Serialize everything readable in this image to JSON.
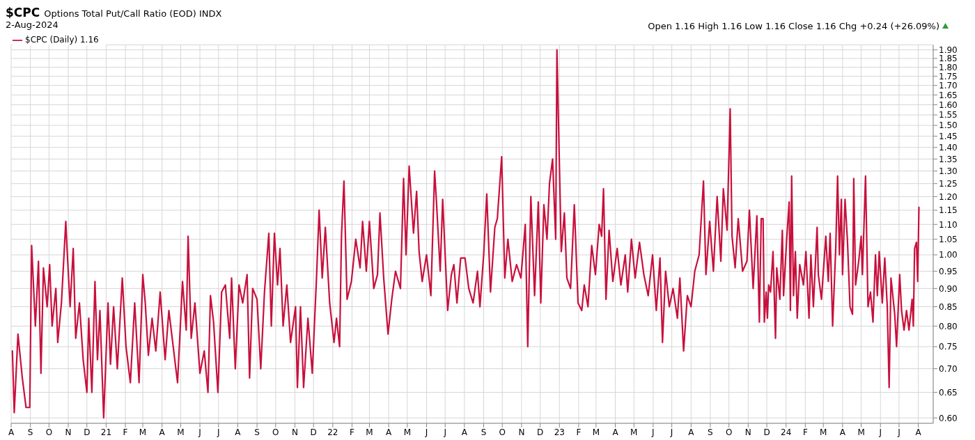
{
  "chart_data": {
    "type": "line",
    "title": "$CPC",
    "subtitle": "Options Total Put/Call Ratio (EOD) INDX",
    "annotations": [
      "2-Aug-2024",
      "Open 1.16 High 1.16 Low 1.16 Close 1.16 Chg +0.24 (+26.09%)"
    ],
    "x": [
      "2020-08-03",
      "2020-08-06",
      "2020-08-12",
      "2020-08-19",
      "2020-08-25",
      "2020-08-31",
      "2020-09-03",
      "2020-09-09",
      "2020-09-14",
      "2020-09-18",
      "2020-09-22",
      "2020-09-28",
      "2020-10-02",
      "2020-10-06",
      "2020-10-12",
      "2020-10-15",
      "2020-10-21",
      "2020-10-28",
      "2020-10-30",
      "2020-11-04",
      "2020-11-09",
      "2020-11-13",
      "2020-11-19",
      "2020-11-25",
      "2020-12-01",
      "2020-12-04",
      "2020-12-09",
      "2020-12-14",
      "2020-12-18",
      "2020-12-22",
      "2020-12-28",
      "2021-01-04",
      "2021-01-08",
      "2021-01-13",
      "2021-01-19",
      "2021-01-27",
      "2021-02-02",
      "2021-02-09",
      "2021-02-16",
      "2021-02-23",
      "2021-03-01",
      "2021-03-05",
      "2021-03-10",
      "2021-03-16",
      "2021-03-22",
      "2021-03-29",
      "2021-04-06",
      "2021-04-12",
      "2021-04-19",
      "2021-04-26",
      "2021-05-04",
      "2021-05-10",
      "2021-05-13",
      "2021-05-18",
      "2021-05-24",
      "2021-06-01",
      "2021-06-08",
      "2021-06-14",
      "2021-06-18",
      "2021-06-23",
      "2021-06-30",
      "2021-07-06",
      "2021-07-12",
      "2021-07-19",
      "2021-07-22",
      "2021-07-28",
      "2021-08-03",
      "2021-08-09",
      "2021-08-16",
      "2021-08-20",
      "2021-08-25",
      "2021-09-01",
      "2021-09-07",
      "2021-09-13",
      "2021-09-20",
      "2021-09-24",
      "2021-09-29",
      "2021-10-04",
      "2021-10-08",
      "2021-10-13",
      "2021-10-19",
      "2021-10-25",
      "2021-11-02",
      "2021-11-05",
      "2021-11-10",
      "2021-11-15",
      "2021-11-22",
      "2021-11-29",
      "2021-12-06",
      "2021-12-10",
      "2021-12-15",
      "2021-12-20",
      "2021-12-27",
      "2022-01-03",
      "2022-01-07",
      "2022-01-12",
      "2022-01-15",
      "2022-01-19",
      "2022-01-24",
      "2022-01-31",
      "2022-02-07",
      "2022-02-14",
      "2022-02-18",
      "2022-02-24",
      "2022-03-01",
      "2022-03-08",
      "2022-03-14",
      "2022-03-18",
      "2022-03-24",
      "2022-03-31",
      "2022-04-06",
      "2022-04-12",
      "2022-04-20",
      "2022-04-25",
      "2022-04-29",
      "2022-05-04",
      "2022-05-11",
      "2022-05-16",
      "2022-05-20",
      "2022-05-25",
      "2022-06-01",
      "2022-06-08",
      "2022-06-14",
      "2022-06-17",
      "2022-06-23",
      "2022-06-27",
      "2022-07-05",
      "2022-07-11",
      "2022-07-15",
      "2022-07-20",
      "2022-07-26",
      "2022-08-02",
      "2022-08-08",
      "2022-08-15",
      "2022-08-22",
      "2022-08-26",
      "2022-09-01",
      "2022-09-06",
      "2022-09-12",
      "2022-09-19",
      "2022-09-23",
      "2022-09-30",
      "2022-10-05",
      "2022-10-10",
      "2022-10-17",
      "2022-10-24",
      "2022-10-31",
      "2022-11-07",
      "2022-11-11",
      "2022-11-16",
      "2022-11-22",
      "2022-11-28",
      "2022-12-02",
      "2022-12-07",
      "2022-12-12",
      "2022-12-16",
      "2022-12-21",
      "2022-12-26",
      "2022-12-28",
      "2023-01-04",
      "2023-01-09",
      "2023-01-13",
      "2023-01-19",
      "2023-01-25",
      "2023-01-31",
      "2023-02-06",
      "2023-02-10",
      "2023-02-16",
      "2023-02-22",
      "2023-02-28",
      "2023-03-06",
      "2023-03-10",
      "2023-03-13",
      "2023-03-17",
      "2023-03-22",
      "2023-03-28",
      "2023-04-04",
      "2023-04-10",
      "2023-04-17",
      "2023-04-21",
      "2023-04-27",
      "2023-05-03",
      "2023-05-10",
      "2023-05-17",
      "2023-05-24",
      "2023-05-31",
      "2023-06-06",
      "2023-06-12",
      "2023-06-16",
      "2023-06-21",
      "2023-06-27",
      "2023-07-03",
      "2023-07-10",
      "2023-07-14",
      "2023-07-20",
      "2023-07-26",
      "2023-08-01",
      "2023-08-07",
      "2023-08-14",
      "2023-08-21",
      "2023-08-25",
      "2023-08-31",
      "2023-09-06",
      "2023-09-12",
      "2023-09-18",
      "2023-09-22",
      "2023-09-28",
      "2023-10-03",
      "2023-10-06",
      "2023-10-11",
      "2023-10-16",
      "2023-10-23",
      "2023-10-30",
      "2023-11-03",
      "2023-11-09",
      "2023-11-15",
      "2023-11-19",
      "2023-11-22",
      "2023-11-25",
      "2023-11-27",
      "2023-11-30",
      "2023-12-02",
      "2023-12-04",
      "2023-12-07",
      "2023-12-11",
      "2023-12-15",
      "2023-12-17",
      "2023-12-22",
      "2023-12-26",
      "2023-12-28",
      "2024-01-02",
      "2024-01-06",
      "2024-01-08",
      "2024-01-10",
      "2024-01-13",
      "2024-01-16",
      "2024-01-19",
      "2024-01-23",
      "2024-01-29",
      "2024-02-02",
      "2024-02-07",
      "2024-02-10",
      "2024-02-14",
      "2024-02-20",
      "2024-02-22",
      "2024-02-27",
      "2024-03-05",
      "2024-03-09",
      "2024-03-12",
      "2024-03-16",
      "2024-03-21",
      "2024-03-24",
      "2024-03-27",
      "2024-03-30",
      "2024-04-01",
      "2024-04-05",
      "2024-04-09",
      "2024-04-13",
      "2024-04-17",
      "2024-04-19",
      "2024-04-22",
      "2024-04-27",
      "2024-05-01",
      "2024-05-03",
      "2024-05-08",
      "2024-05-12",
      "2024-05-16",
      "2024-05-20",
      "2024-05-24",
      "2024-05-27",
      "2024-05-30",
      "2024-06-04",
      "2024-06-08",
      "2024-06-12",
      "2024-06-15",
      "2024-06-18",
      "2024-06-24",
      "2024-06-27",
      "2024-07-02",
      "2024-07-05",
      "2024-07-09",
      "2024-07-13",
      "2024-07-17",
      "2024-07-22",
      "2024-07-24",
      "2024-07-26",
      "2024-07-29",
      "2024-07-31",
      "2024-08-02"
    ],
    "series": [
      {
        "name": "$CPC (Daily) 1.16",
        "color": "#c8103c",
        "values": [
          0.74,
          0.61,
          0.78,
          0.68,
          0.62,
          0.62,
          1.03,
          0.8,
          0.98,
          0.69,
          0.96,
          0.85,
          0.97,
          0.8,
          0.9,
          0.76,
          0.86,
          1.11,
          1.02,
          0.85,
          1.02,
          0.77,
          0.86,
          0.72,
          0.65,
          0.82,
          0.65,
          0.92,
          0.72,
          0.84,
          0.6,
          0.86,
          0.71,
          0.85,
          0.7,
          0.93,
          0.75,
          0.67,
          0.86,
          0.67,
          0.94,
          0.86,
          0.73,
          0.82,
          0.74,
          0.89,
          0.72,
          0.84,
          0.75,
          0.67,
          0.92,
          0.79,
          1.06,
          0.77,
          0.86,
          0.69,
          0.74,
          0.65,
          0.88,
          0.81,
          0.65,
          0.89,
          0.91,
          0.77,
          0.93,
          0.7,
          0.91,
          0.86,
          0.94,
          0.68,
          0.9,
          0.87,
          0.7,
          0.89,
          1.07,
          0.8,
          1.07,
          0.91,
          1.02,
          0.8,
          0.91,
          0.76,
          0.85,
          0.66,
          0.85,
          0.66,
          0.82,
          0.69,
          0.94,
          1.15,
          0.93,
          1.09,
          0.86,
          0.76,
          0.82,
          0.75,
          1.06,
          1.26,
          0.87,
          0.92,
          1.05,
          0.96,
          1.11,
          0.95,
          1.11,
          0.9,
          0.94,
          1.14,
          0.93,
          0.78,
          0.87,
          0.95,
          0.9,
          1.27,
          1.0,
          1.32,
          1.07,
          1.22,
          1.01,
          0.92,
          1.0,
          0.88,
          1.3,
          1.18,
          0.95,
          1.19,
          0.84,
          0.94,
          0.97,
          0.86,
          0.99,
          0.99,
          0.9,
          0.86,
          0.95,
          0.85,
          1.0,
          1.21,
          0.89,
          1.09,
          1.12,
          1.36,
          0.93,
          1.05,
          0.92,
          0.97,
          0.93,
          1.1,
          0.75,
          1.2,
          0.88,
          1.18,
          0.86,
          1.17,
          1.05,
          1.25,
          1.35,
          1.05,
          1.9,
          1.01,
          1.14,
          0.93,
          0.9,
          1.17,
          0.86,
          0.84,
          0.91,
          0.85,
          1.03,
          0.94,
          1.1,
          1.06,
          1.23,
          0.87,
          1.08,
          0.92,
          1.02,
          0.91,
          1.0,
          0.89,
          1.05,
          0.93,
          1.04,
          0.94,
          0.88,
          1.0,
          0.84,
          0.99,
          0.76,
          0.95,
          0.85,
          0.9,
          0.82,
          0.93,
          0.74,
          0.88,
          0.85,
          0.95,
          1.0,
          1.26,
          0.94,
          1.11,
          0.95,
          1.2,
          0.98,
          1.23,
          1.08,
          1.58,
          1.06,
          0.96,
          1.12,
          0.95,
          0.98,
          1.15,
          0.9,
          1.13,
          0.81,
          1.12,
          1.12,
          0.81,
          0.89,
          0.82,
          0.91,
          0.89,
          1.01,
          0.77,
          0.96,
          0.87,
          1.08,
          0.88,
          1.05,
          1.18,
          0.84,
          1.28,
          0.88,
          1.01,
          0.82,
          0.97,
          0.91,
          1.01,
          0.82,
          1.0,
          0.85,
          1.09,
          0.94,
          0.87,
          1.06,
          0.92,
          1.07,
          0.8,
          1.02,
          1.28,
          1.0,
          1.19,
          0.94,
          1.19,
          1.04,
          0.85,
          0.83,
          1.27,
          0.91,
          0.98,
          1.06,
          0.94,
          1.28,
          0.85,
          0.89,
          0.81,
          1.0,
          0.88,
          1.01,
          0.86,
          0.99,
          0.85,
          0.66,
          0.93,
          0.83,
          0.75,
          0.94,
          0.84,
          0.79,
          0.84,
          0.79,
          0.87,
          0.8,
          1.02,
          1.04,
          0.92,
          1.16
        ]
      }
    ],
    "xlim": [
      "2020-08-01",
      "2024-08-25"
    ],
    "xticks": [
      {
        "value": "2020-08-01",
        "label": "A"
      },
      {
        "value": "2020-09-01",
        "label": "S"
      },
      {
        "value": "2020-10-01",
        "label": "O"
      },
      {
        "value": "2020-11-01",
        "label": "N"
      },
      {
        "value": "2020-12-01",
        "label": "D"
      },
      {
        "value": "2021-01-01",
        "label": "21"
      },
      {
        "value": "2021-02-01",
        "label": "F"
      },
      {
        "value": "2021-03-01",
        "label": "M"
      },
      {
        "value": "2021-04-01",
        "label": "A"
      },
      {
        "value": "2021-05-01",
        "label": "M"
      },
      {
        "value": "2021-06-01",
        "label": "J"
      },
      {
        "value": "2021-07-01",
        "label": "J"
      },
      {
        "value": "2021-08-01",
        "label": "A"
      },
      {
        "value": "2021-09-01",
        "label": "S"
      },
      {
        "value": "2021-10-01",
        "label": "O"
      },
      {
        "value": "2021-11-01",
        "label": "N"
      },
      {
        "value": "2021-12-01",
        "label": "D"
      },
      {
        "value": "2022-01-01",
        "label": "22"
      },
      {
        "value": "2022-02-01",
        "label": "F"
      },
      {
        "value": "2022-03-01",
        "label": "M"
      },
      {
        "value": "2022-04-01",
        "label": "A"
      },
      {
        "value": "2022-05-01",
        "label": "M"
      },
      {
        "value": "2022-06-01",
        "label": "J"
      },
      {
        "value": "2022-07-01",
        "label": "J"
      },
      {
        "value": "2022-08-01",
        "label": "A"
      },
      {
        "value": "2022-09-01",
        "label": "S"
      },
      {
        "value": "2022-10-01",
        "label": "O"
      },
      {
        "value": "2022-11-01",
        "label": "N"
      },
      {
        "value": "2022-12-01",
        "label": "D"
      },
      {
        "value": "2023-01-01",
        "label": "23"
      },
      {
        "value": "2023-02-01",
        "label": "F"
      },
      {
        "value": "2023-03-01",
        "label": "M"
      },
      {
        "value": "2023-04-01",
        "label": "A"
      },
      {
        "value": "2023-05-01",
        "label": "M"
      },
      {
        "value": "2023-06-01",
        "label": "J"
      },
      {
        "value": "2023-07-01",
        "label": "J"
      },
      {
        "value": "2023-08-01",
        "label": "A"
      },
      {
        "value": "2023-09-01",
        "label": "S"
      },
      {
        "value": "2023-10-01",
        "label": "O"
      },
      {
        "value": "2023-11-01",
        "label": "N"
      },
      {
        "value": "2023-12-01",
        "label": "D"
      },
      {
        "value": "2024-01-01",
        "label": "24"
      },
      {
        "value": "2024-02-01",
        "label": "F"
      },
      {
        "value": "2024-03-01",
        "label": "M"
      },
      {
        "value": "2024-04-01",
        "label": "A"
      },
      {
        "value": "2024-05-01",
        "label": "M"
      },
      {
        "value": "2024-06-01",
        "label": "J"
      },
      {
        "value": "2024-07-01",
        "label": "J"
      },
      {
        "value": "2024-08-01",
        "label": "A"
      }
    ],
    "ylim": [
      0.59,
      1.93
    ],
    "yticks": [
      {
        "value": 0.6,
        "label": "0.60"
      },
      {
        "value": 0.65,
        "label": "0.65"
      },
      {
        "value": 0.7,
        "label": "0.70"
      },
      {
        "value": 0.75,
        "label": "0.75"
      },
      {
        "value": 0.8,
        "label": "0.80"
      },
      {
        "value": 0.85,
        "label": "0.85"
      },
      {
        "value": 0.9,
        "label": "0.90"
      },
      {
        "value": 0.95,
        "label": "0.95"
      },
      {
        "value": 1.0,
        "label": "1.00"
      },
      {
        "value": 1.05,
        "label": "1.05"
      },
      {
        "value": 1.1,
        "label": "1.10"
      },
      {
        "value": 1.15,
        "label": "1.15"
      },
      {
        "value": 1.2,
        "label": "1.20"
      },
      {
        "value": 1.25,
        "label": "1.25"
      },
      {
        "value": 1.3,
        "label": "1.30"
      },
      {
        "value": 1.35,
        "label": "1.35"
      },
      {
        "value": 1.4,
        "label": "1.40"
      },
      {
        "value": 1.45,
        "label": "1.45"
      },
      {
        "value": 1.5,
        "label": "1.50"
      },
      {
        "value": 1.55,
        "label": "1.55"
      },
      {
        "value": 1.6,
        "label": "1.60"
      },
      {
        "value": 1.65,
        "label": "1.65"
      },
      {
        "value": 1.7,
        "label": "1.70"
      },
      {
        "value": 1.75,
        "label": "1.75"
      },
      {
        "value": 1.8,
        "label": "1.80"
      },
      {
        "value": 1.85,
        "label": "1.85"
      },
      {
        "value": 1.9,
        "label": "1.90"
      }
    ],
    "log": "y",
    "grid": true,
    "legend": "top left",
    "marker": "none",
    "line_style": "solid"
  }
}
